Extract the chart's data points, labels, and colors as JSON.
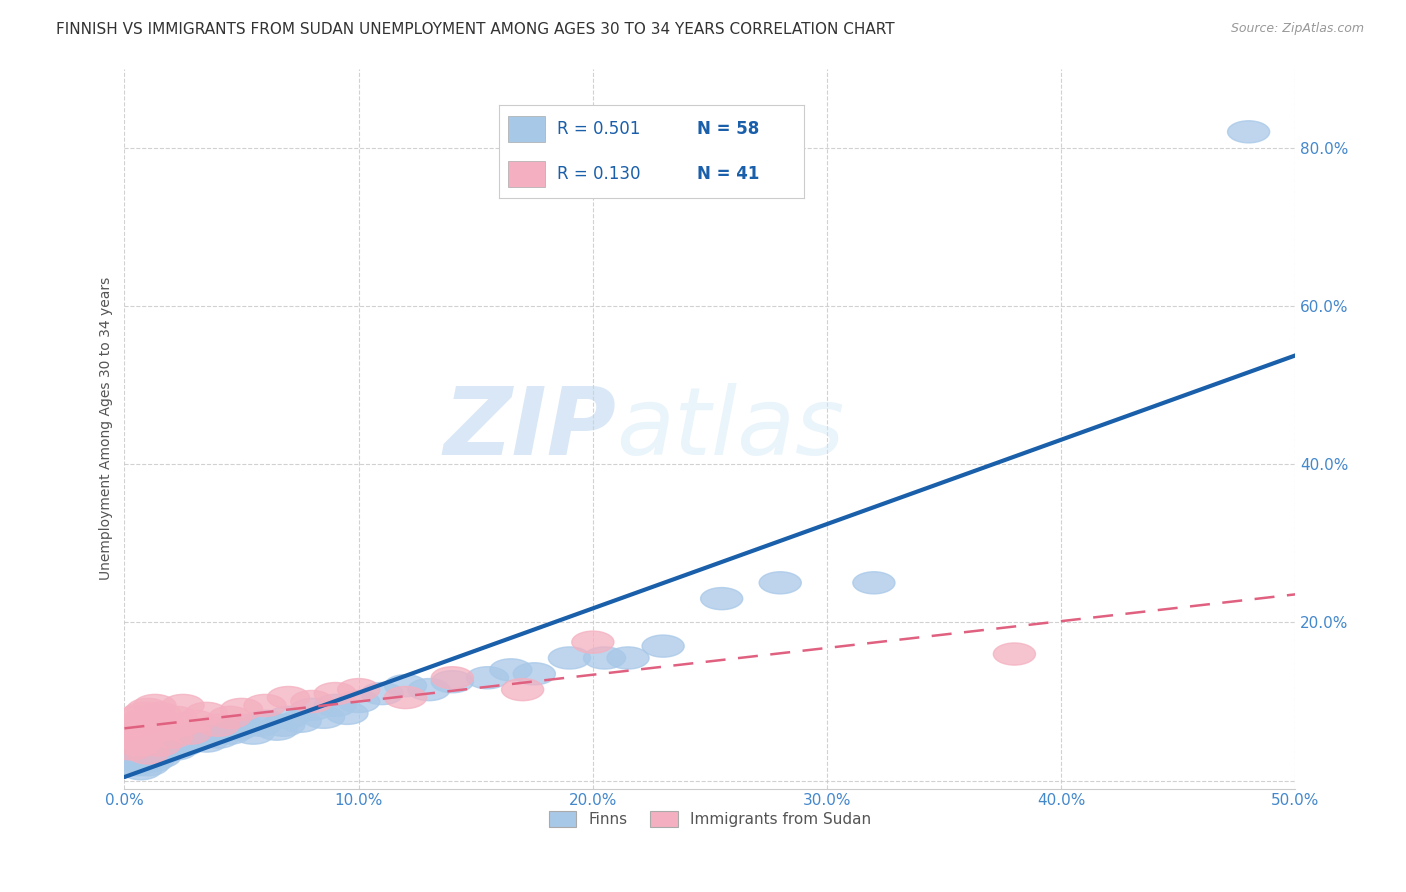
{
  "title": "FINNISH VS IMMIGRANTS FROM SUDAN UNEMPLOYMENT AMONG AGES 30 TO 34 YEARS CORRELATION CHART",
  "source": "Source: ZipAtlas.com",
  "ylabel": "Unemployment Among Ages 30 to 34 years",
  "xlim": [
    0.0,
    0.5
  ],
  "ylim": [
    -0.01,
    0.9
  ],
  "xticks": [
    0.0,
    0.1,
    0.2,
    0.3,
    0.4,
    0.5
  ],
  "yticks": [
    0.0,
    0.2,
    0.4,
    0.6,
    0.8
  ],
  "ytick_labels": [
    "",
    "20.0%",
    "40.0%",
    "60.0%",
    "80.0%"
  ],
  "xtick_labels": [
    "0.0%",
    "10.0%",
    "20.0%",
    "30.0%",
    "40.0%",
    "50.0%"
  ],
  "grid_color": "#cccccc",
  "background_color": "#ffffff",
  "watermark_zip": "ZIP",
  "watermark_atlas": "atlas",
  "legend_R_finns": "0.501",
  "legend_N_finns": "58",
  "legend_R_sudan": "0.130",
  "legend_N_sudan": "41",
  "finns_color": "#a8c8e8",
  "sudan_color": "#f4b0c0",
  "finns_line_color": "#1a5faa",
  "sudan_line_color": "#e06080",
  "finns_scatter_x": [
    0.005,
    0.006,
    0.007,
    0.008,
    0.008,
    0.009,
    0.01,
    0.01,
    0.011,
    0.012,
    0.013,
    0.014,
    0.015,
    0.015,
    0.016,
    0.018,
    0.02,
    0.02,
    0.022,
    0.024,
    0.025,
    0.028,
    0.03,
    0.032,
    0.035,
    0.038,
    0.04,
    0.04,
    0.045,
    0.048,
    0.05,
    0.055,
    0.058,
    0.06,
    0.065,
    0.068,
    0.07,
    0.075,
    0.08,
    0.085,
    0.09,
    0.095,
    0.1,
    0.11,
    0.12,
    0.13,
    0.14,
    0.155,
    0.165,
    0.175,
    0.19,
    0.205,
    0.215,
    0.23,
    0.255,
    0.28,
    0.32,
    0.48
  ],
  "finns_scatter_y": [
    0.02,
    0.025,
    0.015,
    0.03,
    0.035,
    0.025,
    0.02,
    0.04,
    0.03,
    0.025,
    0.035,
    0.04,
    0.03,
    0.045,
    0.035,
    0.04,
    0.045,
    0.05,
    0.04,
    0.055,
    0.045,
    0.05,
    0.055,
    0.06,
    0.05,
    0.06,
    0.055,
    0.065,
    0.06,
    0.065,
    0.07,
    0.06,
    0.07,
    0.075,
    0.065,
    0.07,
    0.08,
    0.075,
    0.09,
    0.08,
    0.095,
    0.085,
    0.1,
    0.11,
    0.12,
    0.115,
    0.125,
    0.13,
    0.14,
    0.135,
    0.155,
    0.155,
    0.155,
    0.17,
    0.23,
    0.25,
    0.25,
    0.82
  ],
  "sudan_scatter_x": [
    0.003,
    0.004,
    0.005,
    0.005,
    0.006,
    0.007,
    0.007,
    0.008,
    0.008,
    0.009,
    0.01,
    0.01,
    0.01,
    0.011,
    0.012,
    0.013,
    0.014,
    0.015,
    0.015,
    0.016,
    0.018,
    0.02,
    0.022,
    0.024,
    0.025,
    0.028,
    0.03,
    0.035,
    0.04,
    0.045,
    0.05,
    0.06,
    0.07,
    0.08,
    0.09,
    0.1,
    0.12,
    0.14,
    0.17,
    0.2,
    0.38
  ],
  "sudan_scatter_y": [
    0.04,
    0.06,
    0.07,
    0.08,
    0.045,
    0.05,
    0.075,
    0.055,
    0.085,
    0.065,
    0.035,
    0.07,
    0.09,
    0.06,
    0.08,
    0.095,
    0.07,
    0.045,
    0.085,
    0.075,
    0.065,
    0.055,
    0.08,
    0.07,
    0.095,
    0.06,
    0.075,
    0.085,
    0.07,
    0.08,
    0.09,
    0.095,
    0.105,
    0.1,
    0.11,
    0.115,
    0.105,
    0.13,
    0.115,
    0.175,
    0.16
  ],
  "title_fontsize": 11,
  "axis_label_fontsize": 10,
  "tick_fontsize": 11,
  "legend_fontsize": 12
}
